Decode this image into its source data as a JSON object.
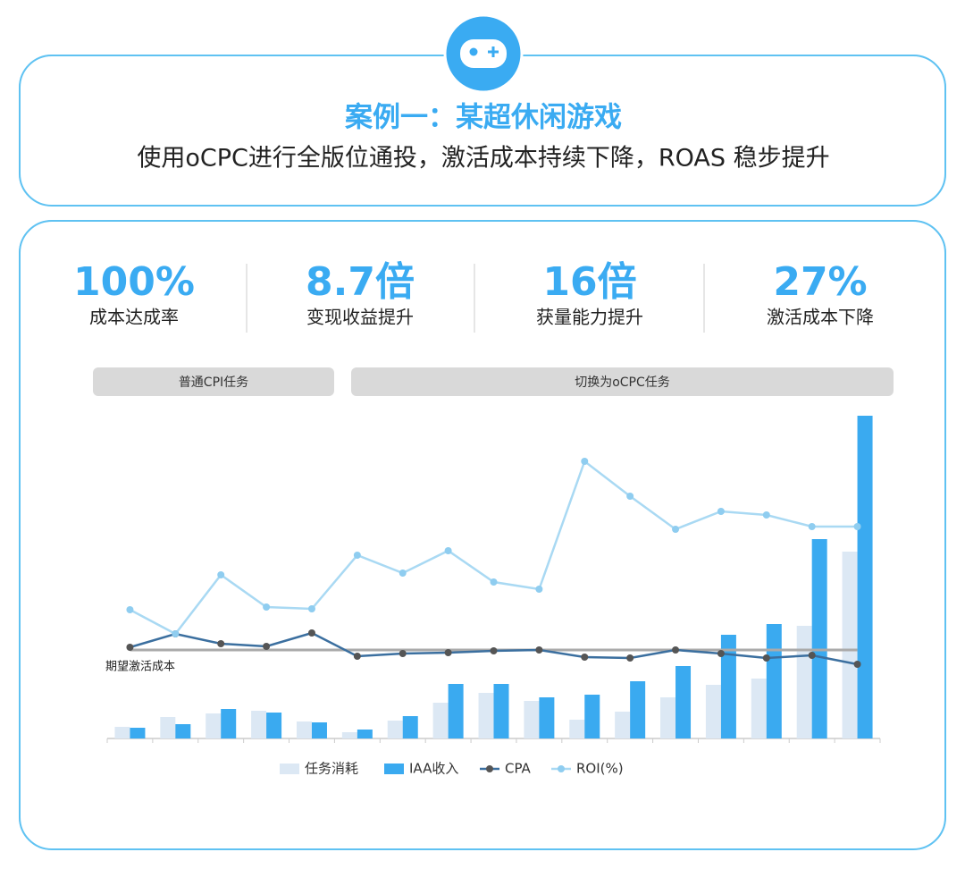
{
  "header": {
    "title": "案例一：某超休闲游戏",
    "subtitle": "使用oCPC进行全版位通投，激活成本持续下降，ROAS 稳步提升"
  },
  "stats": [
    {
      "value": "100%",
      "label": "成本达成率"
    },
    {
      "value": "8.7倍",
      "label": "变现收益提升"
    },
    {
      "value": "16倍",
      "label": "获量能力提升"
    },
    {
      "value": "27%",
      "label": "激活成本下降"
    }
  ],
  "phases": [
    "普通CPI任务",
    "切换为oCPC任务"
  ],
  "chart_data": {
    "type": "bar-line",
    "categories": [
      null,
      null,
      null,
      null,
      null,
      null,
      null,
      null,
      null,
      null,
      null,
      null,
      null,
      null,
      null,
      null,
      null
    ],
    "series": [
      {
        "name": "任务消耗",
        "kind": "bar",
        "color": "#dce8f4",
        "values": [
          13,
          24,
          28,
          31,
          19,
          7,
          20,
          40,
          51,
          42,
          21,
          30,
          46,
          60,
          67,
          126,
          209
        ]
      },
      {
        "name": "IAA收入",
        "kind": "bar",
        "color": "#3aaaf0",
        "values": [
          12,
          16,
          33,
          29,
          18,
          10,
          25,
          61,
          61,
          46,
          49,
          64,
          81,
          116,
          128,
          223,
          361
        ]
      },
      {
        "name": "CPA",
        "kind": "line",
        "color": "#3b6f9f",
        "marker_color": "#555555",
        "values": [
          102,
          117,
          106,
          103,
          118,
          92,
          95,
          96,
          98,
          99,
          91,
          90,
          99,
          95,
          90,
          93,
          83
        ]
      },
      {
        "name": "ROI(%)",
        "kind": "line",
        "color": "#a9d9f3",
        "marker_color": "#8fcdf0",
        "values": [
          144,
          117,
          183,
          147,
          145,
          205,
          185,
          210,
          175,
          167,
          310,
          271,
          234,
          254,
          250,
          237,
          237
        ]
      }
    ],
    "reference_line": {
      "value": 99,
      "label": "期望激活成本"
    },
    "ylim": [
      0,
      370
    ]
  }
}
